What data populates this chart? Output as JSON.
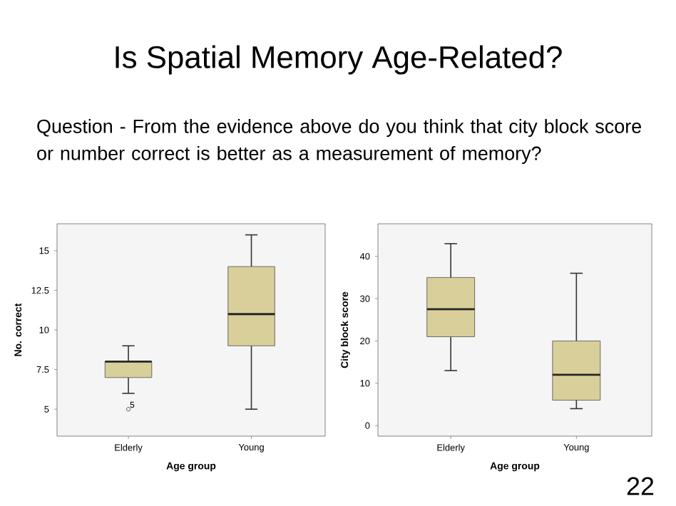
{
  "chart_data": [
    {
      "type": "box",
      "title": "Is Spatial Memory Age-Related?",
      "subtitle": "Question - From the evidence above do you think that city block score or number correct is better as a measurement of memory?",
      "categories": [
        "Elderly",
        "Young"
      ],
      "xlabel": "Age group",
      "ylabel": "No. correct",
      "ylim": [
        3.3,
        16.7
      ],
      "yticks": [
        5,
        {
          "value": 7.5,
          "label": "7.5"
        },
        10,
        {
          "value": 12.5,
          "label": "12.5"
        },
        15
      ],
      "series": [
        {
          "color": "#d8cf9a",
          "boxes": [
            {
              "low": 6,
              "q1": 7,
              "median": 8,
              "q3": 8,
              "high": 9,
              "outliers": [
                5
              ]
            },
            {
              "low": 5,
              "q1": 9,
              "median": 11,
              "q3": 14,
              "high": 16
            }
          ]
        }
      ],
      "annotations": [
        "5"
      ]
    },
    {
      "type": "box",
      "categories": [
        "Elderly",
        "Young"
      ],
      "xlabel": "Age group",
      "ylabel": "City block score",
      "ylim": [
        -2.5,
        47.7
      ],
      "yticks": [
        0,
        10,
        20,
        30,
        40
      ],
      "series": [
        {
          "color": "#d8cf9a",
          "boxes": [
            {
              "low": 13,
              "q1": 21,
              "median": 27.5,
              "q3": 35,
              "high": 43
            },
            {
              "low": 4,
              "q1": 6,
              "median": 12,
              "q3": 20,
              "high": 36
            }
          ]
        }
      ],
      "annotations": [
        "22"
      ]
    }
  ]
}
